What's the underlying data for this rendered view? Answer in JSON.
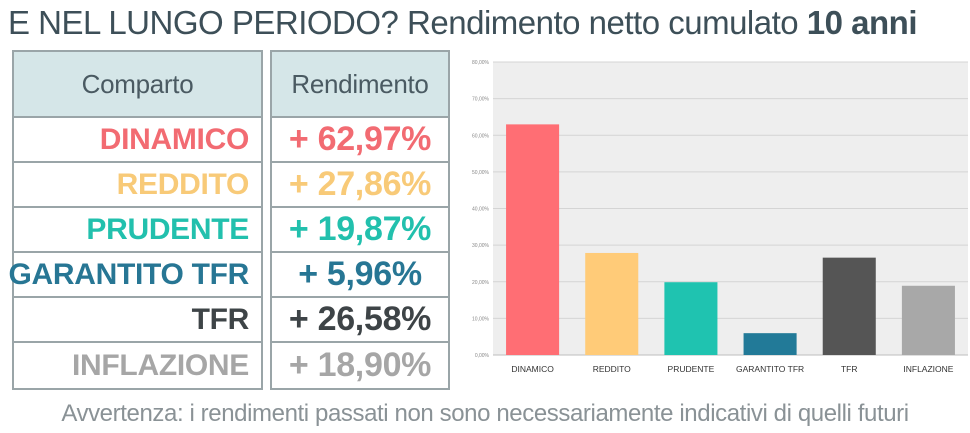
{
  "header": {
    "title_main": "E NEL LUNGO PERIODO? Rendimento netto cumulato ",
    "title_bold": "10 anni"
  },
  "table": {
    "col_comparto": "Comparto",
    "col_rendimento": "Rendimento",
    "rows": [
      {
        "name": "DINAMICO",
        "value": "+ 62,97%",
        "color": "#f26b72"
      },
      {
        "name": "REDDITO",
        "value": "+ 27,86%",
        "color": "#f8ca78"
      },
      {
        "name": "PRUDENTE",
        "value": "+ 19,87%",
        "color": "#22c0ad"
      },
      {
        "name": "GARANTITO TFR",
        "value": "+ 5,96%",
        "color": "#277694"
      },
      {
        "name": "TFR",
        "value": "+ 26,58%",
        "color": "#3e4447"
      },
      {
        "name": "INFLAZIONE",
        "value": "+ 18,90%",
        "color": "#a6a6a6"
      }
    ]
  },
  "chart_data": {
    "type": "bar",
    "categories": [
      "DINAMICO",
      "REDDITO",
      "PRUDENTE",
      "GARANTITO TFR",
      "TFR",
      "INFLAZIONE"
    ],
    "values": [
      62.97,
      27.86,
      19.87,
      5.96,
      26.58,
      18.9
    ],
    "colors": [
      "#ff6e74",
      "#ffcb78",
      "#1fc3b0",
      "#227a98",
      "#555555",
      "#a8a8a8"
    ],
    "ylim": [
      0,
      80
    ],
    "yticks": [
      "0,00%",
      "10,00%",
      "20,00%",
      "30,00%",
      "40,00%",
      "50,00%",
      "60,00%",
      "70,00%",
      "80,00%"
    ],
    "grid": true,
    "background": "#eeeeee"
  },
  "footer": {
    "disclaimer": "Avvertenza: i rendimenti passati non sono necessariamente indicativi di quelli futuri"
  }
}
